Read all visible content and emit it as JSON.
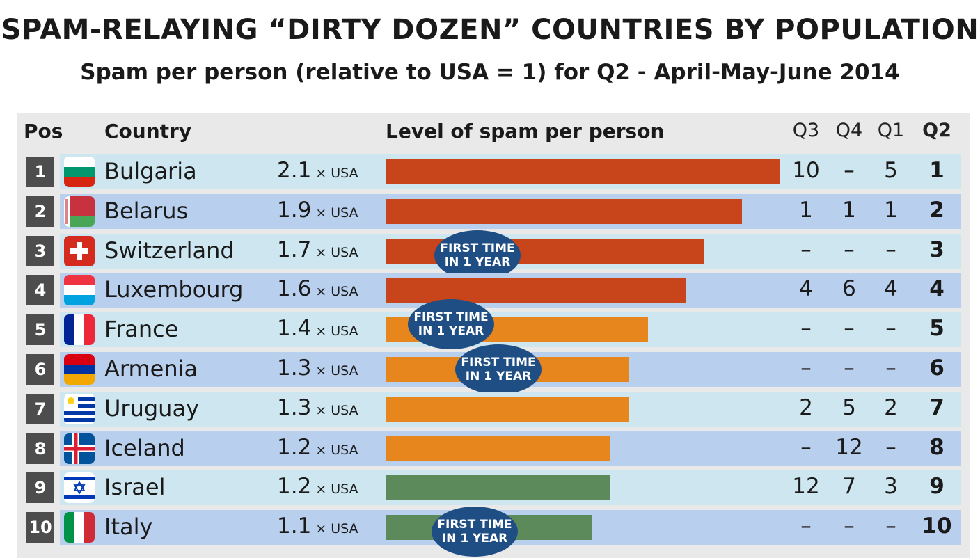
{
  "title": "SPAM-RELAYING “DIRTY DOZEN” COUNTRIES BY POPULATION",
  "subtitle": "Spam per person (relative to USA = 1) for Q2 - April-May-June 2014",
  "headers": {
    "pos": "Pos",
    "country": "Country",
    "level": "Level of spam per person",
    "q3": "Q3",
    "q4": "Q4",
    "q1": "Q1",
    "q2": "Q2"
  },
  "usa_suffix": "× USA",
  "badge_text": {
    "line1": "FIRST TIME",
    "line2": "IN 1 YEAR"
  },
  "colors": {
    "red": "#c8441a",
    "orange": "#e8861e",
    "green": "#5c8a5a",
    "badge": "#1f4e84"
  },
  "chart_data": {
    "type": "bar",
    "title": "SPAM-RELAYING “DIRTY DOZEN” COUNTRIES BY POPULATION",
    "subtitle": "Spam per person (relative to USA = 1) for Q2 - April-May-June 2014",
    "xlabel": "Level of spam per person",
    "ylabel": "Country",
    "xlim": [
      0,
      2.1
    ],
    "orientation": "horizontal",
    "categories": [
      "Bulgaria",
      "Belarus",
      "Switzerland",
      "Luxembourg",
      "France",
      "Armenia",
      "Uruguay",
      "Iceland",
      "Israel",
      "Italy"
    ],
    "values": [
      2.1,
      1.9,
      1.7,
      1.6,
      1.4,
      1.3,
      1.3,
      1.2,
      1.2,
      1.1
    ]
  },
  "rows": [
    {
      "pos": "1",
      "country": "Bulgaria",
      "value": 2.1,
      "value_label": "2.1",
      "color": "red",
      "flag": "bulgaria-flag-icon",
      "first_time": false,
      "q3": "10",
      "q4": "–",
      "q1": "5",
      "q2": "1"
    },
    {
      "pos": "2",
      "country": "Belarus",
      "value": 1.9,
      "value_label": "1.9",
      "color": "red",
      "flag": "belarus-flag-icon",
      "first_time": false,
      "q3": "1",
      "q4": "1",
      "q1": "1",
      "q2": "2"
    },
    {
      "pos": "3",
      "country": "Switzerland",
      "value": 1.7,
      "value_label": "1.7",
      "color": "red",
      "flag": "switzerland-flag-icon",
      "first_time": true,
      "q3": "–",
      "q4": "–",
      "q1": "–",
      "q2": "3"
    },
    {
      "pos": "4",
      "country": "Luxembourg",
      "value": 1.6,
      "value_label": "1.6",
      "color": "red",
      "flag": "luxembourg-flag-icon",
      "first_time": false,
      "q3": "4",
      "q4": "6",
      "q1": "4",
      "q2": "4"
    },
    {
      "pos": "5",
      "country": "France",
      "value": 1.4,
      "value_label": "1.4",
      "color": "orange",
      "flag": "france-flag-icon",
      "first_time": true,
      "q3": "–",
      "q4": "–",
      "q1": "–",
      "q2": "5"
    },
    {
      "pos": "6",
      "country": "Armenia",
      "value": 1.3,
      "value_label": "1.3",
      "color": "orange",
      "flag": "armenia-flag-icon",
      "first_time": true,
      "q3": "–",
      "q4": "–",
      "q1": "–",
      "q2": "6"
    },
    {
      "pos": "7",
      "country": "Uruguay",
      "value": 1.3,
      "value_label": "1.3",
      "color": "orange",
      "flag": "uruguay-flag-icon",
      "first_time": false,
      "q3": "2",
      "q4": "5",
      "q1": "2",
      "q2": "7"
    },
    {
      "pos": "8",
      "country": "Iceland",
      "value": 1.2,
      "value_label": "1.2",
      "color": "orange",
      "flag": "iceland-flag-icon",
      "first_time": false,
      "q3": "–",
      "q4": "12",
      "q1": "–",
      "q2": "8"
    },
    {
      "pos": "9",
      "country": "Israel",
      "value": 1.2,
      "value_label": "1.2",
      "color": "green",
      "flag": "israel-flag-icon",
      "first_time": false,
      "q3": "12",
      "q4": "7",
      "q1": "3",
      "q2": "9"
    },
    {
      "pos": "10",
      "country": "Italy",
      "value": 1.1,
      "value_label": "1.1",
      "color": "green",
      "flag": "italy-flag-icon",
      "first_time": true,
      "q3": "–",
      "q4": "–",
      "q1": "–",
      "q2": "10"
    }
  ]
}
